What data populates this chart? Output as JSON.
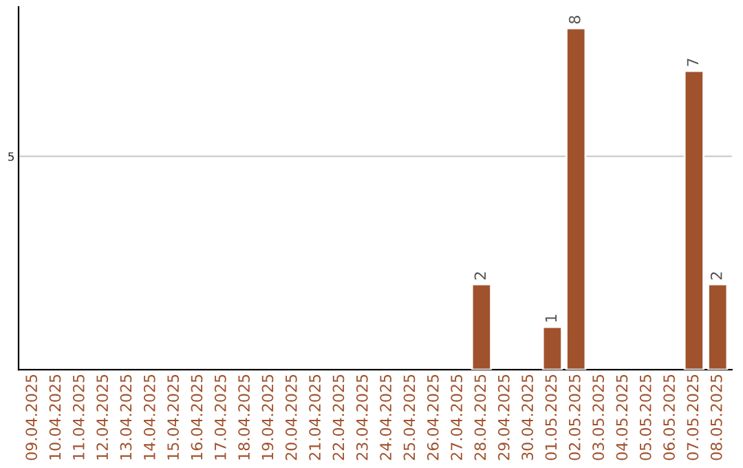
{
  "chart_data": {
    "type": "bar",
    "categories": [
      "09.04.2025",
      "10.04.2025",
      "11.04.2025",
      "12.04.2025",
      "13.04.2025",
      "14.04.2025",
      "15.04.2025",
      "16.04.2025",
      "17.04.2025",
      "18.04.2025",
      "19.04.2025",
      "20.04.2025",
      "21.04.2025",
      "22.04.2025",
      "23.04.2025",
      "24.04.2025",
      "25.04.2025",
      "26.04.2025",
      "27.04.2025",
      "28.04.2025",
      "29.04.2025",
      "30.04.2025",
      "01.05.2025",
      "02.05.2025",
      "03.05.2025",
      "04.05.2025",
      "05.05.2025",
      "06.05.2025",
      "07.05.2025",
      "08.05.2025"
    ],
    "values": [
      null,
      null,
      null,
      null,
      null,
      null,
      null,
      null,
      null,
      null,
      null,
      null,
      null,
      null,
      null,
      null,
      null,
      null,
      null,
      2,
      null,
      null,
      1,
      8,
      null,
      null,
      null,
      null,
      7,
      2
    ],
    "value_labels": [
      null,
      null,
      null,
      null,
      null,
      null,
      null,
      null,
      null,
      null,
      null,
      null,
      null,
      null,
      null,
      null,
      null,
      null,
      null,
      "2",
      null,
      null,
      "1",
      "8",
      null,
      null,
      null,
      null,
      "7",
      "2"
    ],
    "color": "#a0522d",
    "ylim": [
      0,
      8.5
    ],
    "yticks": [
      5
    ],
    "grid": "y"
  }
}
